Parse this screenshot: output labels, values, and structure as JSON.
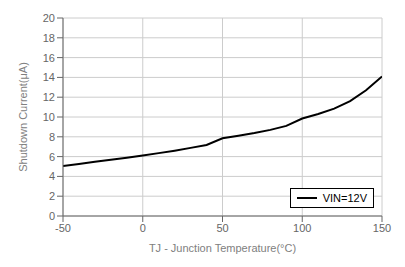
{
  "chart_data": {
    "type": "line",
    "title": "",
    "xlabel": "TJ - Junction Temperature(°C)",
    "ylabel": "Shutdown Current(μA)",
    "x": [
      -50,
      -40,
      -30,
      -20,
      -10,
      0,
      10,
      20,
      30,
      40,
      50,
      60,
      70,
      80,
      90,
      100,
      110,
      120,
      130,
      140,
      150
    ],
    "series": [
      {
        "name": "VIN=12V",
        "color": "#000000",
        "values": [
          5.05,
          5.25,
          5.48,
          5.68,
          5.88,
          6.1,
          6.35,
          6.6,
          6.88,
          7.18,
          7.85,
          8.1,
          8.38,
          8.7,
          9.1,
          9.85,
          10.3,
          10.85,
          11.6,
          12.7,
          14.1
        ]
      }
    ],
    "xlim": [
      -50,
      150
    ],
    "ylim": [
      0,
      20
    ],
    "xticks": [
      -50,
      0,
      50,
      100,
      150
    ],
    "yticks": [
      0,
      2,
      4,
      6,
      8,
      10,
      12,
      14,
      16,
      18,
      20
    ],
    "grid": true,
    "legend": "lower right"
  }
}
